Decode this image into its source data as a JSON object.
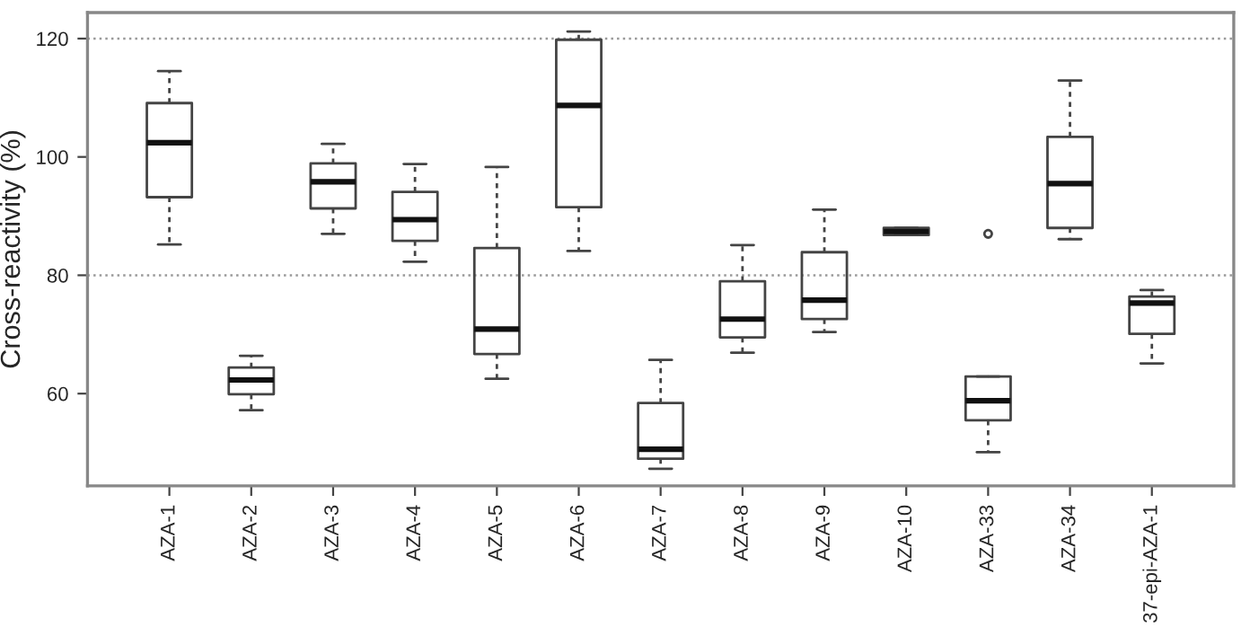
{
  "chart_data": {
    "type": "box",
    "ylabel": "Cross-reactivity (%)",
    "categories": [
      "AZA-1",
      "AZA-2",
      "AZA-3",
      "AZA-4",
      "AZA-5",
      "AZA-6",
      "AZA-7",
      "AZA-8",
      "AZA-9",
      "AZA-10",
      "AZA-33",
      "AZA-34",
      "37-epi-AZA-1"
    ],
    "boxes": [
      {
        "low": 85.2,
        "q1": 93.2,
        "median": 102.4,
        "q3": 109.1,
        "high": 114.5
      },
      {
        "low": 57.2,
        "q1": 59.9,
        "median": 62.3,
        "q3": 64.4,
        "high": 66.4
      },
      {
        "low": 87.0,
        "q1": 91.3,
        "median": 95.8,
        "q3": 98.9,
        "high": 102.2
      },
      {
        "low": 82.3,
        "q1": 85.8,
        "median": 89.4,
        "q3": 94.1,
        "high": 98.8
      },
      {
        "low": 62.5,
        "q1": 66.7,
        "median": 70.9,
        "q3": 84.6,
        "high": 98.3
      },
      {
        "low": 84.1,
        "q1": 91.5,
        "median": 108.7,
        "q3": 119.8,
        "high": 121.2
      },
      {
        "low": 47.3,
        "q1": 49.0,
        "median": 50.6,
        "q3": 58.4,
        "high": 65.7
      },
      {
        "low": 66.9,
        "q1": 69.5,
        "median": 72.6,
        "q3": 79.0,
        "high": 85.1
      },
      {
        "low": 70.4,
        "q1": 72.6,
        "median": 75.8,
        "q3": 83.9,
        "high": 91.1
      },
      {
        "low": 86.8,
        "q1": 86.8,
        "median": 87.4,
        "q3": 88.0,
        "high": 88.0
      },
      {
        "low": 50.1,
        "q1": 55.5,
        "median": 58.8,
        "q3": 62.9,
        "high": 62.9,
        "outliers": [
          87.0
        ]
      },
      {
        "low": 86.1,
        "q1": 88.0,
        "median": 95.5,
        "q3": 103.4,
        "high": 112.9
      },
      {
        "low": 65.1,
        "q1": 70.1,
        "median": 75.3,
        "q3": 76.4,
        "high": 77.5
      }
    ],
    "ylim": [
      44.4,
      124.4
    ],
    "yticks": [
      60,
      80,
      100,
      120
    ],
    "ref_lines": [
      {
        "axis": "y",
        "value": 80,
        "color": "#999999",
        "line_style": "dotted"
      },
      {
        "axis": "y",
        "value": 120,
        "color": "#999999",
        "line_style": "dotted"
      }
    ]
  }
}
